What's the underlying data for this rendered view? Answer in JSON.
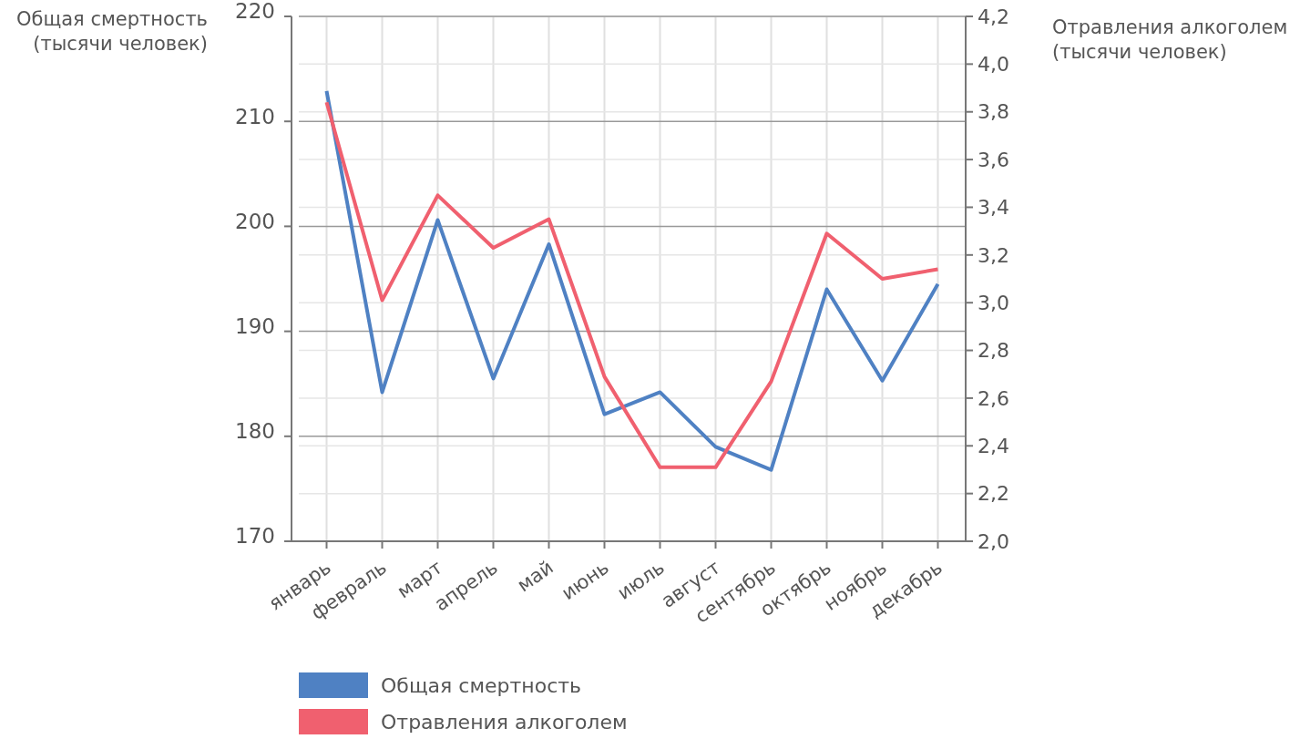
{
  "chart_data": {
    "type": "line",
    "ylabel": "Общая смертность\n(тысячи человек)",
    "y2label": "Отравления алкоголем\n(тысячи человек)",
    "categories": [
      "январь",
      "февраль",
      "март",
      "апрель",
      "май",
      "июнь",
      "июль",
      "август",
      "сентябрь",
      "октябрь",
      "ноябрь",
      "декабрь"
    ],
    "series": [
      {
        "name": "Общая смертность",
        "color": "#4f81c3",
        "values": [
          212.9,
          184.2,
          200.6,
          185.5,
          198.3,
          182.1,
          184.2,
          179.0,
          176.8,
          194.0,
          185.3,
          194.5
        ]
      },
      {
        "name": "Отравления алкоголем",
        "color": "#f0606f",
        "axis": "y2",
        "values": [
          3.84,
          3.01,
          3.45,
          3.23,
          3.35,
          2.69,
          2.31,
          2.31,
          2.67,
          3.29,
          3.1,
          3.14
        ]
      }
    ],
    "ylim": [
      170,
      220
    ],
    "yticks": [
      170,
      180,
      190,
      200,
      210,
      220
    ],
    "y2lim": [
      2.0,
      4.2
    ],
    "y2ticks": [
      {
        "value": 2.0,
        "label": "2,0"
      },
      {
        "value": 2.2,
        "label": "2,2"
      },
      {
        "value": 2.4,
        "label": "2,4"
      },
      {
        "value": 2.6,
        "label": "2,6"
      },
      {
        "value": 2.8,
        "label": "2,8"
      },
      {
        "value": 3.0,
        "label": "3,0"
      },
      {
        "value": 3.2,
        "label": "3,2"
      },
      {
        "value": 3.4,
        "label": "3,4"
      },
      {
        "value": 3.6,
        "label": "3,6"
      },
      {
        "value": 3.8,
        "label": "3,8"
      },
      {
        "value": 4.0,
        "label": "4,0"
      },
      {
        "value": 4.2,
        "label": "4,2"
      }
    ],
    "grid": true,
    "legend": "bottom",
    "line_style": "solid"
  }
}
